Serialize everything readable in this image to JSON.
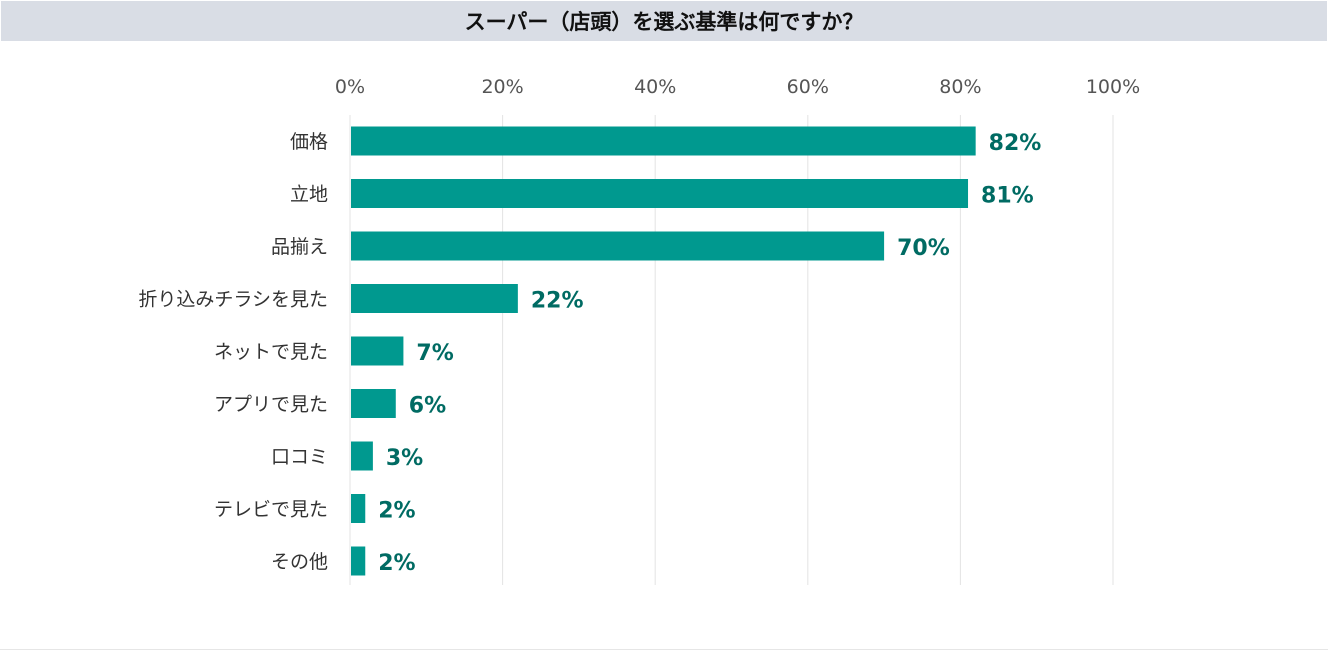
{
  "chart_data": {
    "type": "bar",
    "orientation": "horizontal",
    "title": "スーパー（店頭）を選ぶ基準は何ですか？",
    "categories": [
      "価格",
      "立地",
      "品揃え",
      "折り込みチラシを見た",
      "ネットで見た",
      "アプリで見た",
      "口コミ",
      "テレビで見た",
      "その他"
    ],
    "values": [
      82,
      81,
      70,
      22,
      7,
      6,
      3,
      2,
      2
    ],
    "value_labels": [
      "82%",
      "81%",
      "70%",
      "22%",
      "7%",
      "6%",
      "3%",
      "2%",
      "2%"
    ],
    "xlim": [
      0,
      100
    ],
    "x_ticks": [
      0,
      20,
      40,
      60,
      80,
      100
    ],
    "x_tick_labels": [
      "0%",
      "20%",
      "40%",
      "60%",
      "80%",
      "100%"
    ],
    "grid": true,
    "xlabel": "",
    "ylabel": ""
  },
  "colors": {
    "bar": "#00998f",
    "value_label": "#006b63",
    "category_label": "#333333",
    "tick_label": "#555555",
    "grid": "#e3e3e3",
    "title_bg": "#d9dde5"
  }
}
